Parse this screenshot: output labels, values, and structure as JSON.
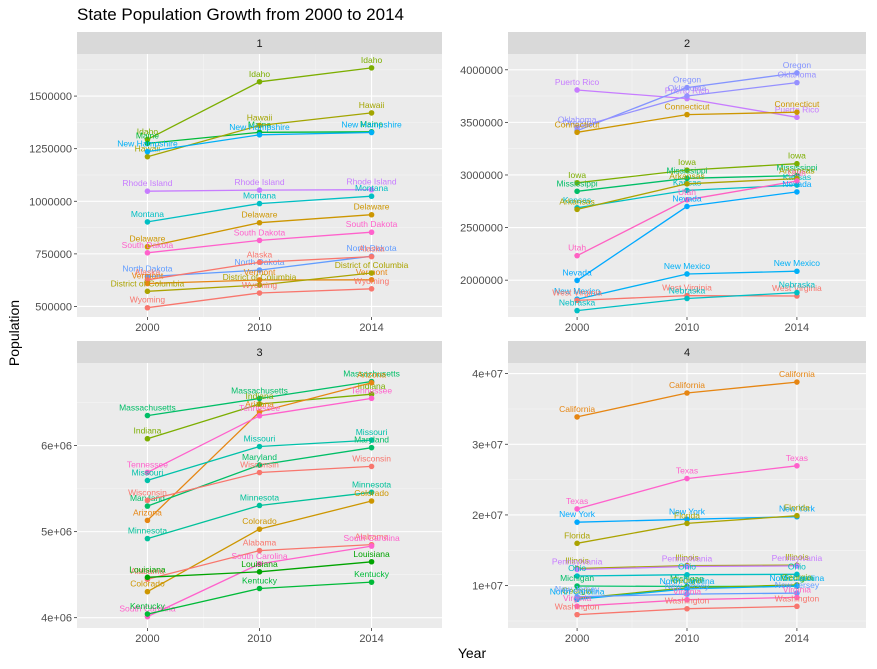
{
  "chart_data": {
    "type": "line",
    "title": "State Population Growth from 2000 to 2014",
    "xlabel": "Year",
    "ylabel": "Population",
    "x": [
      2000,
      2010,
      2014
    ],
    "x_tick_labels": [
      "2000",
      "2010",
      "2014"
    ],
    "panels": [
      {
        "strip": "1",
        "ylim": [
          450000,
          1700000
        ],
        "y_ticks": [
          500000,
          750000,
          1000000,
          1250000,
          1500000
        ],
        "y_tick_labels": [
          "500000",
          "750000",
          "1000000",
          "1250000",
          "1500000"
        ],
        "series": [
          {
            "name": "Idaho",
            "color": "#7CAE00",
            "values": [
              1294000,
              1568000,
              1634000
            ]
          },
          {
            "name": "Maine",
            "color": "#00BA38",
            "values": [
              1275000,
              1328000,
              1330000
            ]
          },
          {
            "name": "Hawaii",
            "color": "#A3A500",
            "values": [
              1212000,
              1360000,
              1420000
            ]
          },
          {
            "name": "New Hampshire",
            "color": "#00B0F6",
            "values": [
              1236000,
              1316000,
              1327000
            ]
          },
          {
            "name": "Rhode Island",
            "color": "#C77CFF",
            "values": [
              1048000,
              1053000,
              1055000
            ]
          },
          {
            "name": "Montana",
            "color": "#00BFC4",
            "values": [
              902000,
              989000,
              1024000
            ]
          },
          {
            "name": "Delaware",
            "color": "#CD9600",
            "values": [
              784000,
              898000,
              936000
            ]
          },
          {
            "name": "South Dakota",
            "color": "#FF61CC",
            "values": [
              755000,
              814000,
              853000
            ]
          },
          {
            "name": "North Dakota",
            "color": "#619CFF",
            "values": [
              642000,
              673000,
              739000
            ]
          },
          {
            "name": "Alaska",
            "color": "#F8766D",
            "values": [
              627000,
              710000,
              737000
            ]
          },
          {
            "name": "Vermont",
            "color": "#E68613",
            "values": [
              609000,
              626000,
              627000
            ]
          },
          {
            "name": "District of Columbia",
            "color": "#ABA300",
            "values": [
              572000,
              602000,
              659000
            ]
          },
          {
            "name": "Wyoming",
            "color": "#F8766D",
            "values": [
              494000,
              564000,
              584000
            ]
          }
        ]
      },
      {
        "strip": "2",
        "ylim": [
          1650000,
          4150000
        ],
        "y_ticks": [
          2000000,
          2500000,
          3000000,
          3500000,
          4000000
        ],
        "y_tick_labels": [
          "2000000",
          "2500000",
          "3000000",
          "3500000",
          "4000000"
        ],
        "series": [
          {
            "name": "Puerto Rico",
            "color": "#C77CFF",
            "values": [
              3808000,
              3726000,
              3548000
            ]
          },
          {
            "name": "Oregon",
            "color": "#8494FF",
            "values": [
              3421000,
              3831000,
              3970000
            ]
          },
          {
            "name": "Oklahoma",
            "color": "#9590FF",
            "values": [
              3451000,
              3751000,
              3878000
            ]
          },
          {
            "name": "Connecticut",
            "color": "#CD9600",
            "values": [
              3406000,
              3574000,
              3597000
            ]
          },
          {
            "name": "Iowa",
            "color": "#7CAE00",
            "values": [
              2926000,
              3046000,
              3107000
            ]
          },
          {
            "name": "Mississippi",
            "color": "#00BE67",
            "values": [
              2845000,
              2968000,
              2994000
            ]
          },
          {
            "name": "Kansas",
            "color": "#00BFC4",
            "values": [
              2688000,
              2853000,
              2904000
            ]
          },
          {
            "name": "Arkansas",
            "color": "#ABA300",
            "values": [
              2673000,
              2916000,
              2966000
            ]
          },
          {
            "name": "Utah",
            "color": "#FF61C3",
            "values": [
              2233000,
              2764000,
              2943000
            ]
          },
          {
            "name": "Nevada",
            "color": "#00A9FF",
            "values": [
              1998000,
              2701000,
              2839000
            ]
          },
          {
            "name": "New Mexico",
            "color": "#00B0F6",
            "values": [
              1819000,
              2059000,
              2085000
            ]
          },
          {
            "name": "West Virginia",
            "color": "#F8766D",
            "values": [
              1808000,
              1853000,
              1850000
            ]
          },
          {
            "name": "Nebraska",
            "color": "#00BFC4",
            "values": [
              1711000,
              1826000,
              1882000
            ]
          }
        ]
      },
      {
        "strip": "3",
        "ylim": [
          3880000,
          6960000
        ],
        "y_ticks": [
          4000000,
          5000000,
          6000000
        ],
        "y_tick_labels": [
          "4e+06",
          "5e+06",
          "6e+06"
        ],
        "series": [
          {
            "name": "Massachusetts",
            "color": "#00BE67",
            "values": [
              6349000,
              6547000,
              6745000
            ]
          },
          {
            "name": "Indiana",
            "color": "#7CAE00",
            "values": [
              6080000,
              6484000,
              6597000
            ]
          },
          {
            "name": "Arizona",
            "color": "#E68613",
            "values": [
              5131000,
              6392000,
              6731000
            ]
          },
          {
            "name": "Tennessee",
            "color": "#FF61CC",
            "values": [
              5689000,
              6346000,
              6549000
            ]
          },
          {
            "name": "Missouri",
            "color": "#00C1AA",
            "values": [
              5595000,
              5989000,
              6064000
            ]
          },
          {
            "name": "Maryland",
            "color": "#00BE67",
            "values": [
              5297000,
              5774000,
              5976000
            ]
          },
          {
            "name": "Wisconsin",
            "color": "#F8766D",
            "values": [
              5364000,
              5687000,
              5758000
            ]
          },
          {
            "name": "Minnesota",
            "color": "#00C19A",
            "values": [
              4919000,
              5304000,
              5457000
            ]
          },
          {
            "name": "Colorado",
            "color": "#CD9600",
            "values": [
              4302000,
              5029000,
              5356000
            ]
          },
          {
            "name": "Alabama",
            "color": "#F8766D",
            "values": [
              4447000,
              4780000,
              4849000
            ]
          },
          {
            "name": "South Carolina",
            "color": "#FF61CC",
            "values": [
              4012000,
              4625000,
              4832000
            ]
          },
          {
            "name": "Louisiana",
            "color": "#00A400",
            "values": [
              4469000,
              4533000,
              4650000
            ]
          },
          {
            "name": "Kentucky",
            "color": "#00BA38",
            "values": [
              4042000,
              4339000,
              4413000
            ]
          }
        ]
      },
      {
        "strip": "4",
        "ylim": [
          4000000,
          41500000
        ],
        "y_ticks": [
          10000000,
          20000000,
          30000000,
          40000000
        ],
        "y_tick_labels": [
          "1e+07",
          "2e+07",
          "3e+07",
          "4e+07"
        ],
        "series": [
          {
            "name": "California",
            "color": "#E68613",
            "values": [
              33872000,
              37254000,
              38803000
            ]
          },
          {
            "name": "Texas",
            "color": "#FF61CC",
            "values": [
              20852000,
              25146000,
              26957000
            ]
          },
          {
            "name": "New York",
            "color": "#00A9FF",
            "values": [
              18976000,
              19378000,
              19746000
            ]
          },
          {
            "name": "Florida",
            "color": "#ABA300",
            "values": [
              15982000,
              18801000,
              19893000
            ]
          },
          {
            "name": "Illinois",
            "color": "#A3A500",
            "values": [
              12419000,
              12831000,
              12880000
            ]
          },
          {
            "name": "Pennsylvania",
            "color": "#C77CFF",
            "values": [
              12281000,
              12702000,
              12787000
            ]
          },
          {
            "name": "Ohio",
            "color": "#00BFC4",
            "values": [
              11353000,
              11537000,
              11594000
            ]
          },
          {
            "name": "Michigan",
            "color": "#00BE67",
            "values": [
              9938000,
              9884000,
              9910000
            ]
          },
          {
            "name": "Georgia",
            "color": "#7CAE00",
            "values": [
              8186000,
              9688000,
              10097000
            ]
          },
          {
            "name": "North Carolina",
            "color": "#00B0F6",
            "values": [
              8049000,
              9535000,
              9944000
            ]
          },
          {
            "name": "New Jersey",
            "color": "#619CFF",
            "values": [
              8414000,
              8792000,
              8938000
            ]
          },
          {
            "name": "Virginia",
            "color": "#FF61C3",
            "values": [
              7079000,
              8001000,
              8326000
            ]
          },
          {
            "name": "Washington",
            "color": "#F8766D",
            "values": [
              5894000,
              6725000,
              7062000
            ]
          }
        ]
      }
    ]
  }
}
